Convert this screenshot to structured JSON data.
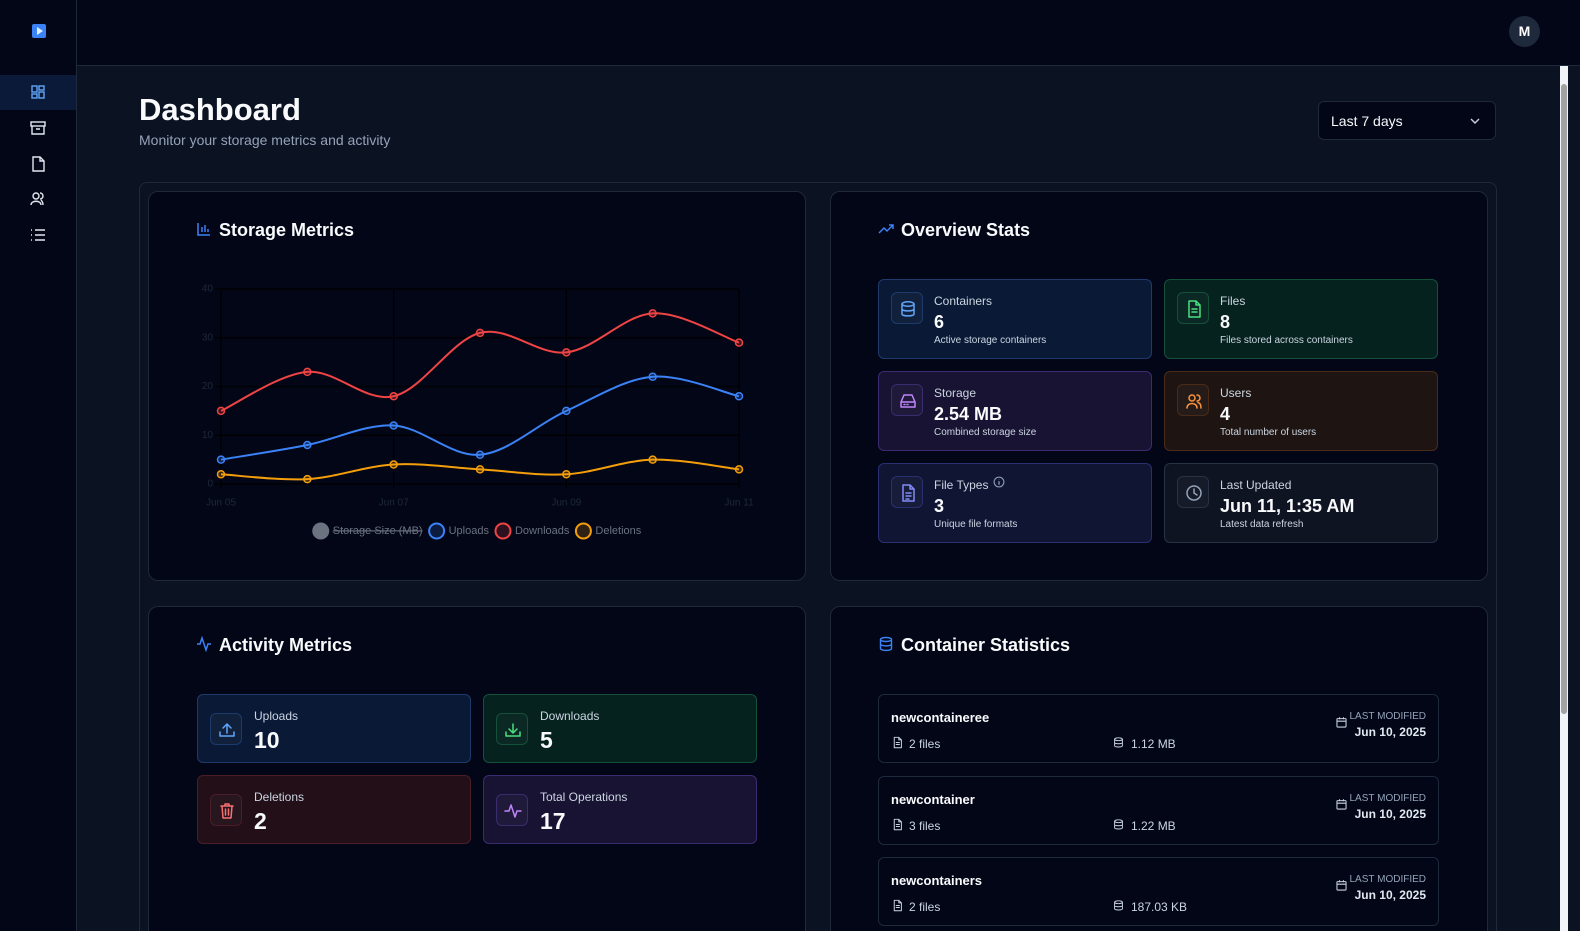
{
  "header": {
    "avatar": "M"
  },
  "page": {
    "title": "Dashboard",
    "subtitle": "Monitor your storage metrics and activity",
    "range": "Last 7 days"
  },
  "storage": {
    "title": "Storage Metrics"
  },
  "chart_data": {
    "type": "line",
    "categories": [
      "Jun 05",
      null,
      "Jun 07",
      null,
      "Jun 09",
      null,
      "Jun 11"
    ],
    "ylim": [
      0,
      40
    ],
    "yticks": [
      0,
      10,
      20,
      30,
      40
    ],
    "grid": true,
    "smooth": true,
    "legend": "bottom",
    "series": [
      {
        "name": "Storage Size (MB)",
        "color": "#6b7280",
        "hidden": true,
        "values": [
          null,
          null,
          null,
          null,
          null,
          null,
          null
        ]
      },
      {
        "name": "Uploads",
        "color": "#3b82f6",
        "values": [
          5,
          8,
          12,
          6,
          15,
          22,
          18
        ]
      },
      {
        "name": "Downloads",
        "color": "#ef4444",
        "values": [
          15,
          23,
          18,
          31,
          27,
          35,
          29
        ]
      },
      {
        "name": "Deletions",
        "color": "#f59e0b",
        "values": [
          2,
          1,
          4,
          3,
          2,
          5,
          3
        ]
      }
    ]
  },
  "overview": {
    "title": "Overview Stats",
    "stats": [
      {
        "label": "Containers",
        "value": "6",
        "note": "Active storage containers"
      },
      {
        "label": "Files",
        "value": "8",
        "note": "Files stored across containers"
      },
      {
        "label": "Storage",
        "value": "2.54 MB",
        "note": "Combined storage size"
      },
      {
        "label": "Users",
        "value": "4",
        "note": "Total number of users"
      },
      {
        "label": "File Types",
        "value": "3",
        "note": "Unique file formats"
      },
      {
        "label": "Last Updated",
        "value": "Jun 11, 1:35 AM",
        "note": "Latest data refresh"
      }
    ]
  },
  "activity": {
    "title": "Activity Metrics",
    "stats": [
      {
        "label": "Uploads",
        "value": "10"
      },
      {
        "label": "Downloads",
        "value": "5"
      },
      {
        "label": "Deletions",
        "value": "2"
      },
      {
        "label": "Total Operations",
        "value": "17"
      }
    ]
  },
  "containers": {
    "title": "Container Statistics",
    "items": [
      {
        "name": "newcontaineree",
        "files": "2",
        "files_label": "files",
        "size": "1.12 MB",
        "modified_label": "LAST MODIFIED",
        "date": "Jun 10, 2025"
      },
      {
        "name": "newcontainer",
        "files": "3",
        "files_label": "files",
        "size": "1.22 MB",
        "modified_label": "LAST MODIFIED",
        "date": "Jun 10, 2025"
      },
      {
        "name": "newcontainers",
        "files": "2",
        "files_label": "files",
        "size": "187.03 KB",
        "modified_label": "LAST MODIFIED",
        "date": "Jun 10, 2025"
      }
    ]
  }
}
